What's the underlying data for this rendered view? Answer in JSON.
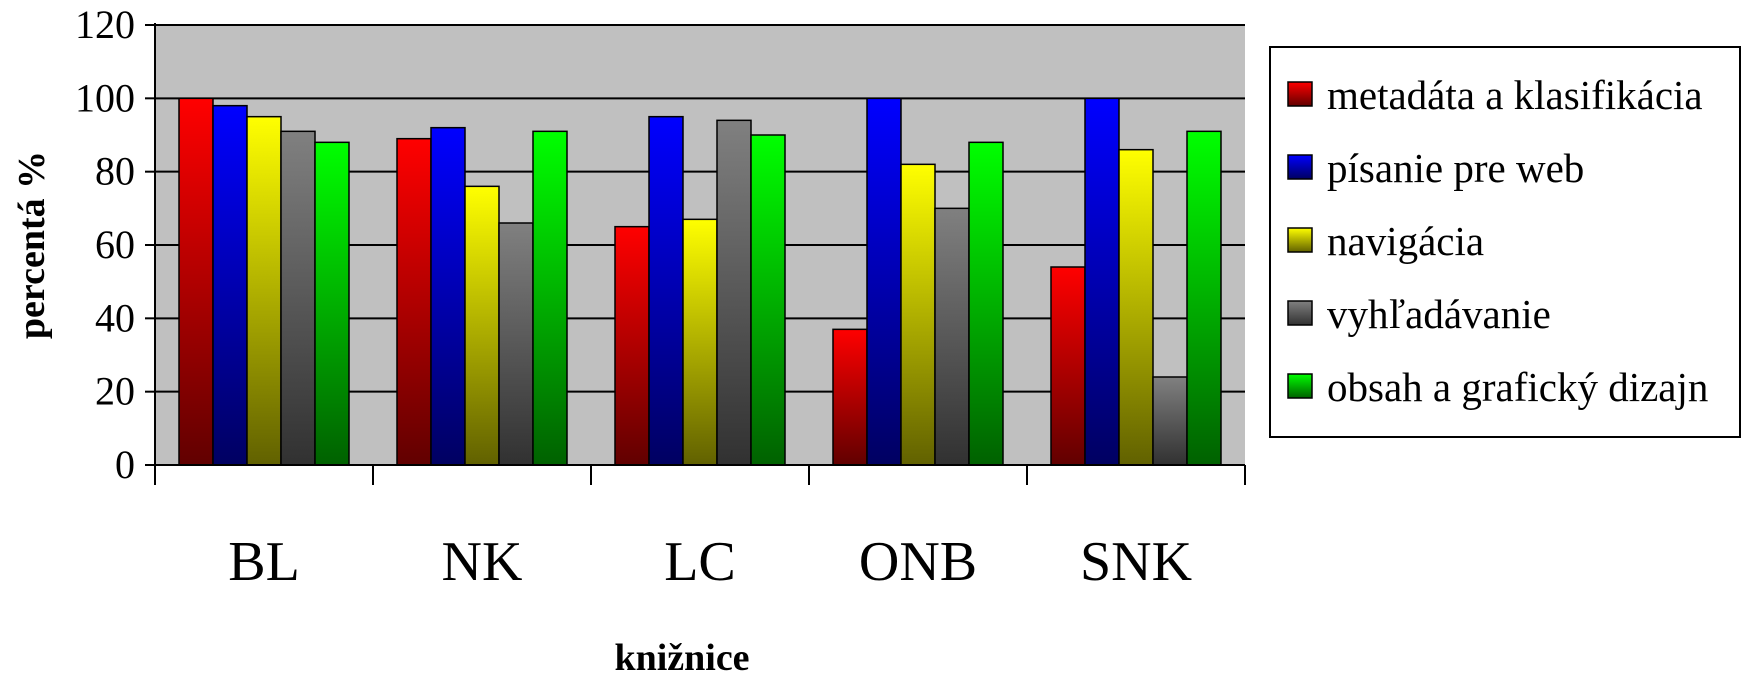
{
  "chart_data": {
    "type": "bar",
    "title": "",
    "xlabel": "knižnice",
    "ylabel": "percentá %",
    "ylim": [
      0,
      120
    ],
    "yticks": [
      0,
      20,
      40,
      60,
      80,
      100,
      120
    ],
    "grid": true,
    "legend_position": "right",
    "categories": [
      "BL",
      "NK",
      "LC",
      "ONB",
      "SNK"
    ],
    "series": [
      {
        "name": "metadáta a klasifikácia",
        "color": "#ff0000",
        "values": [
          100,
          89,
          65,
          37,
          54
        ]
      },
      {
        "name": "písanie pre web",
        "color": "#0000ff",
        "values": [
          98,
          92,
          95,
          100,
          100
        ]
      },
      {
        "name": "navigácia",
        "color": "#ffff00",
        "values": [
          95,
          76,
          67,
          82,
          86
        ]
      },
      {
        "name": "vyhľadávanie",
        "color": "#808080",
        "values": [
          91,
          66,
          94,
          70,
          24
        ]
      },
      {
        "name": "obsah a grafický dizajn",
        "color": "#00ff00",
        "values": [
          88,
          91,
          90,
          88,
          91
        ]
      }
    ]
  }
}
